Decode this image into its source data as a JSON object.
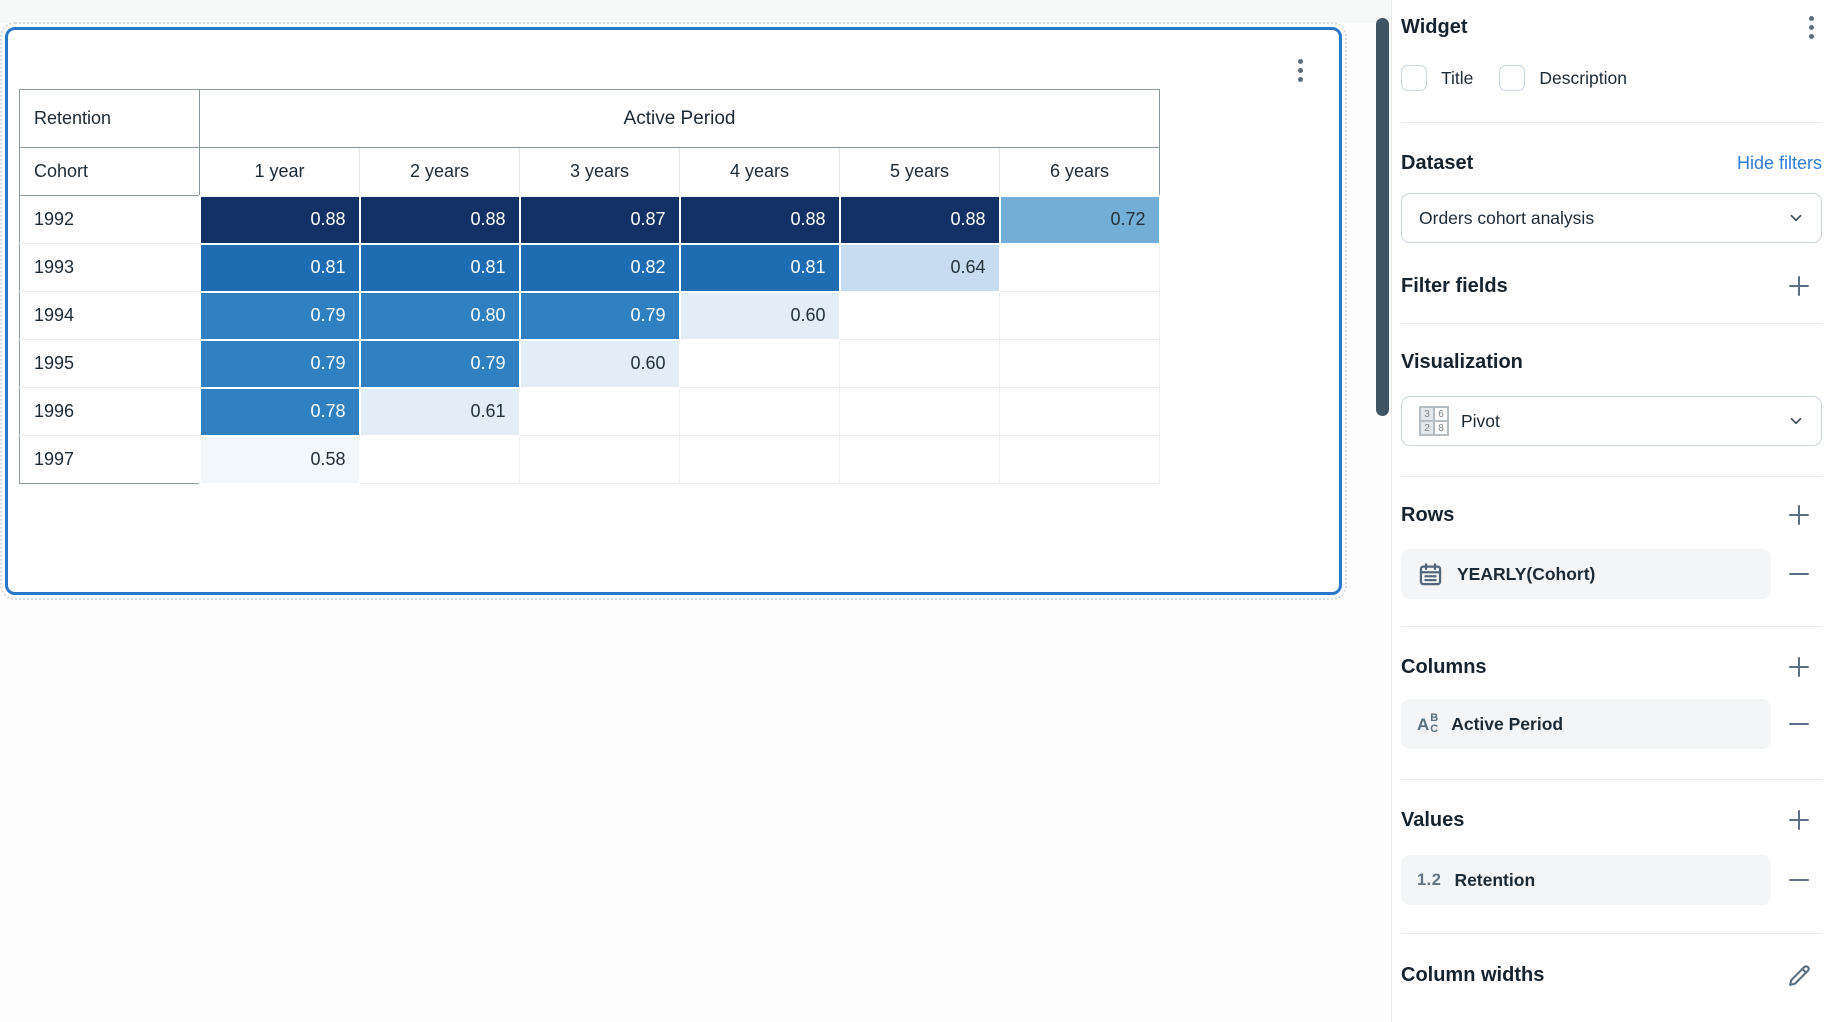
{
  "sidebar": {
    "title": "Widget",
    "checkboxes": [
      {
        "label": "Title",
        "checked": false
      },
      {
        "label": "Description",
        "checked": false
      }
    ],
    "dataset": {
      "title": "Dataset",
      "link": "Hide filters",
      "selected": "Orders cohort analysis"
    },
    "filter_fields": {
      "title": "Filter fields"
    },
    "visualization": {
      "title": "Visualization",
      "selected": "Pivot"
    },
    "rows": {
      "title": "Rows",
      "items": [
        {
          "label": "YEARLY(Cohort)",
          "icon": "calendar-icon"
        }
      ]
    },
    "columns": {
      "title": "Columns",
      "items": [
        {
          "label": "Active Period",
          "icon": "abc-icon"
        }
      ]
    },
    "values": {
      "title": "Values",
      "items": [
        {
          "label": "Retention",
          "icon": "number-icon",
          "icon_text": "1.2"
        }
      ]
    },
    "column_widths": {
      "title": "Column widths"
    }
  },
  "chart_data": {
    "type": "heatmap",
    "title": "Retention",
    "corner_label": "Retention",
    "column_group_label": "Active Period",
    "row_header": "Cohort",
    "columns": [
      "1 year",
      "2 years",
      "3 years",
      "4 years",
      "5 years",
      "6 years"
    ],
    "rows": [
      {
        "cohort": "1992",
        "values": [
          0.88,
          0.88,
          0.87,
          0.88,
          0.88,
          0.72
        ]
      },
      {
        "cohort": "1993",
        "values": [
          0.81,
          0.81,
          0.82,
          0.81,
          0.64,
          null
        ]
      },
      {
        "cohort": "1994",
        "values": [
          0.79,
          0.8,
          0.79,
          0.6,
          null,
          null
        ]
      },
      {
        "cohort": "1995",
        "values": [
          0.79,
          0.79,
          0.6,
          null,
          null,
          null
        ]
      },
      {
        "cohort": "1996",
        "values": [
          0.78,
          0.61,
          null,
          null,
          null,
          null
        ]
      },
      {
        "cohort": "1997",
        "values": [
          0.58,
          null,
          null,
          null,
          null,
          null
        ]
      }
    ],
    "value_format": "0.00",
    "color_stops": [
      {
        "min": 0.85,
        "bg": "#143166",
        "text": "#ffffff"
      },
      {
        "min": 0.81,
        "bg": "#1e6db3",
        "text": "#ffffff"
      },
      {
        "min": 0.75,
        "bg": "#2f80c0",
        "text": "#ffffff"
      },
      {
        "min": 0.7,
        "bg": "#72aed6",
        "text": "#25313a"
      },
      {
        "min": 0.63,
        "bg": "#c7dcf0",
        "text": "#25313a"
      },
      {
        "min": 0.59,
        "bg": "#e3edf8",
        "text": "#25313a"
      },
      {
        "min": 0.0,
        "bg": "#f2f7fc",
        "text": "#25313a"
      }
    ],
    "layout": {
      "label_col_width": 180,
      "value_col_width": 160
    }
  }
}
